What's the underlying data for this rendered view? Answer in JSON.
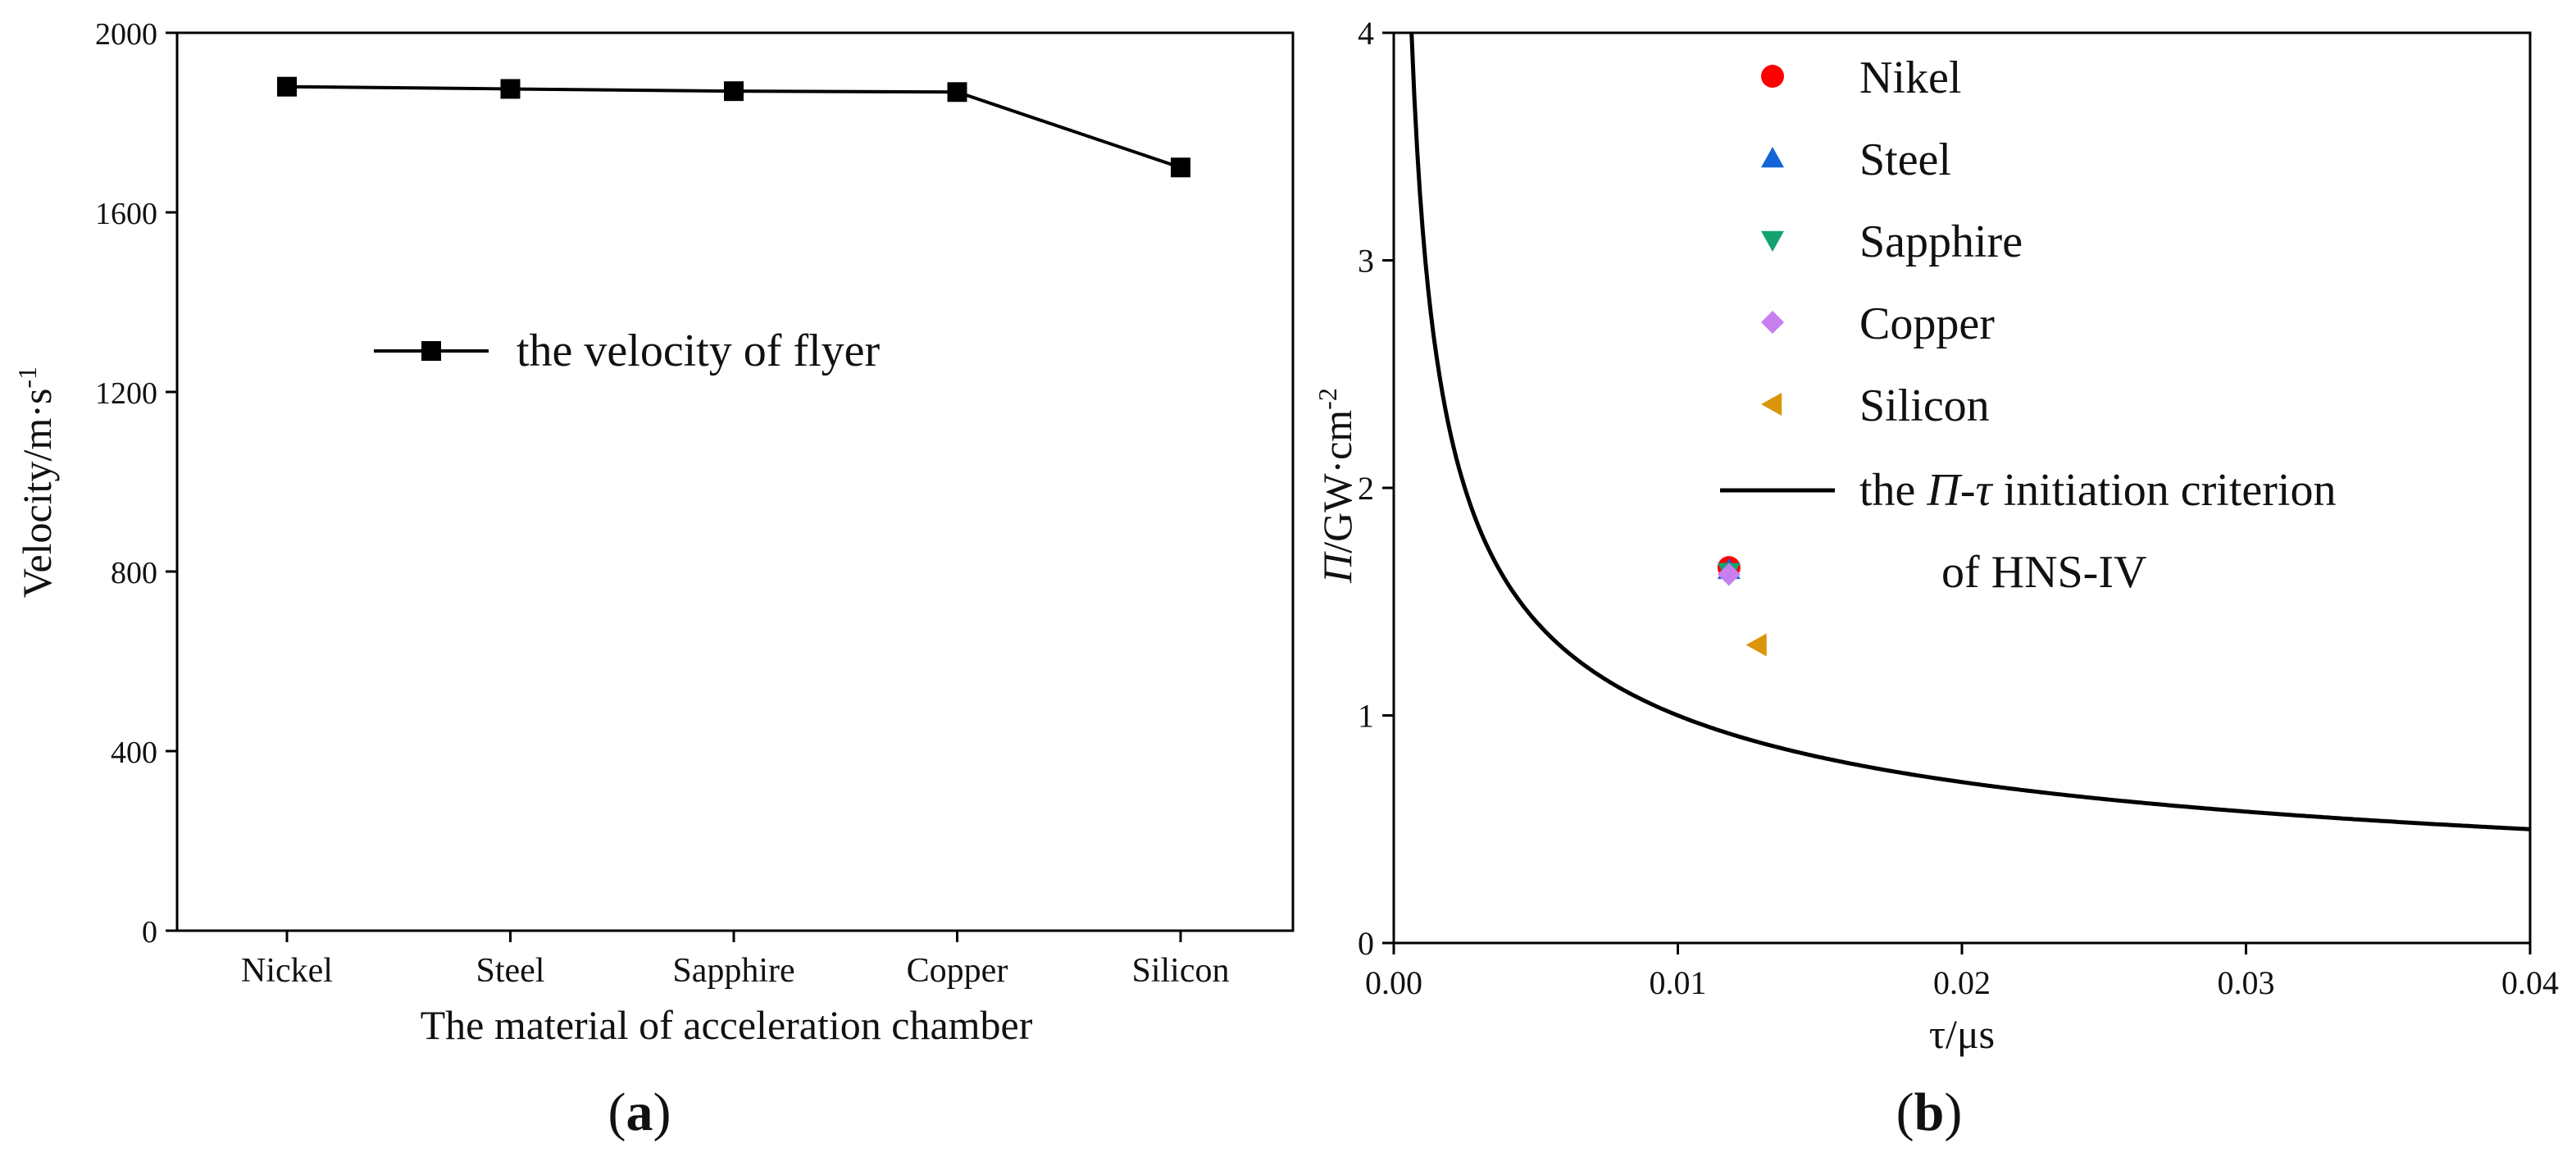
{
  "figure_labels": {
    "a_letter": "a",
    "b_letter": "b"
  },
  "chart_data": [
    {
      "id": "a",
      "type": "line",
      "title": "",
      "xlabel": "The material of acceleration chamber",
      "ylabel_main": "Velocity/m·s",
      "ylabel_sup": "-1",
      "categories": [
        "Nickel",
        "Steel",
        "Sapphire",
        "Copper",
        "Silicon"
      ],
      "ylim": [
        0,
        2000
      ],
      "yticks": [
        0,
        400,
        800,
        1200,
        1600,
        2000
      ],
      "series": [
        {
          "name": "the velocity of flyer",
          "values": [
            1880,
            1875,
            1870,
            1868,
            1700
          ],
          "marker": "square",
          "color": "#000000"
        }
      ],
      "legend": {
        "position": "middle-left",
        "label": "the velocity of flyer"
      }
    },
    {
      "id": "b",
      "type": "scatter",
      "title": "",
      "xlabel": "τ/μs",
      "ylabel_pi": "Π",
      "ylabel_main": "/GW·cm",
      "ylabel_sup": "-2",
      "xlim": [
        0,
        0.04
      ],
      "ylim": [
        0,
        4
      ],
      "xticks": [
        "0.00",
        "0.01",
        "0.02",
        "0.03",
        "0.04"
      ],
      "yticks": [
        "0",
        "1",
        "2",
        "3",
        "4"
      ],
      "series": [
        {
          "name": "Nikel",
          "marker": "circle",
          "color": "#ff0000",
          "x": [
            0.0118
          ],
          "y": [
            1.65
          ]
        },
        {
          "name": "Steel",
          "marker": "triangle-up",
          "color": "#1565d8",
          "x": [
            0.0118
          ],
          "y": [
            1.64
          ]
        },
        {
          "name": "Sapphire",
          "marker": "triangle-down",
          "color": "#13a36f",
          "x": [
            0.0118
          ],
          "y": [
            1.63
          ]
        },
        {
          "name": "Copper",
          "marker": "diamond",
          "color": "#c77ff0",
          "x": [
            0.0118
          ],
          "y": [
            1.62
          ]
        },
        {
          "name": "Silicon",
          "marker": "triangle-left",
          "color": "#d9960a",
          "x": [
            0.0128
          ],
          "y": [
            1.31
          ]
        }
      ],
      "curve": {
        "name_prefix": "the ",
        "name_pi": "Π",
        "name_dash": "-",
        "name_tau": "τ",
        "name_suffix": " initiation criterion",
        "name_line2": "of HNS-IV",
        "formula": "Pi^2 * tau = const",
        "const": 0.01
      },
      "legend": {
        "position": "top-right"
      }
    }
  ]
}
